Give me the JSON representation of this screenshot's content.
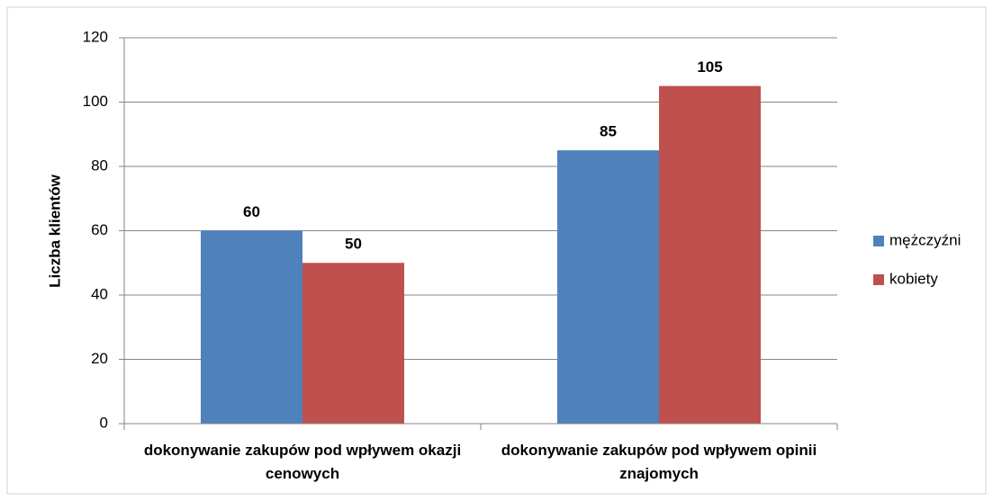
{
  "chart_data": {
    "type": "bar",
    "y_label": "Liczba klientów",
    "categories": [
      "dokonywanie zakupów pod wpływem okazji cenowych",
      "dokonywanie zakupów pod wpływem opinii znajomych"
    ],
    "series": [
      {
        "name": "mężczyźni",
        "color": "#4f81bd",
        "values": [
          60,
          85
        ]
      },
      {
        "name": "kobiety",
        "color": "#c0504d",
        "values": [
          50,
          105
        ]
      }
    ],
    "ylim": [
      0,
      120
    ],
    "yticks": [
      0,
      20,
      40,
      60,
      80,
      100,
      120
    ],
    "grid": true,
    "legend": "right"
  }
}
